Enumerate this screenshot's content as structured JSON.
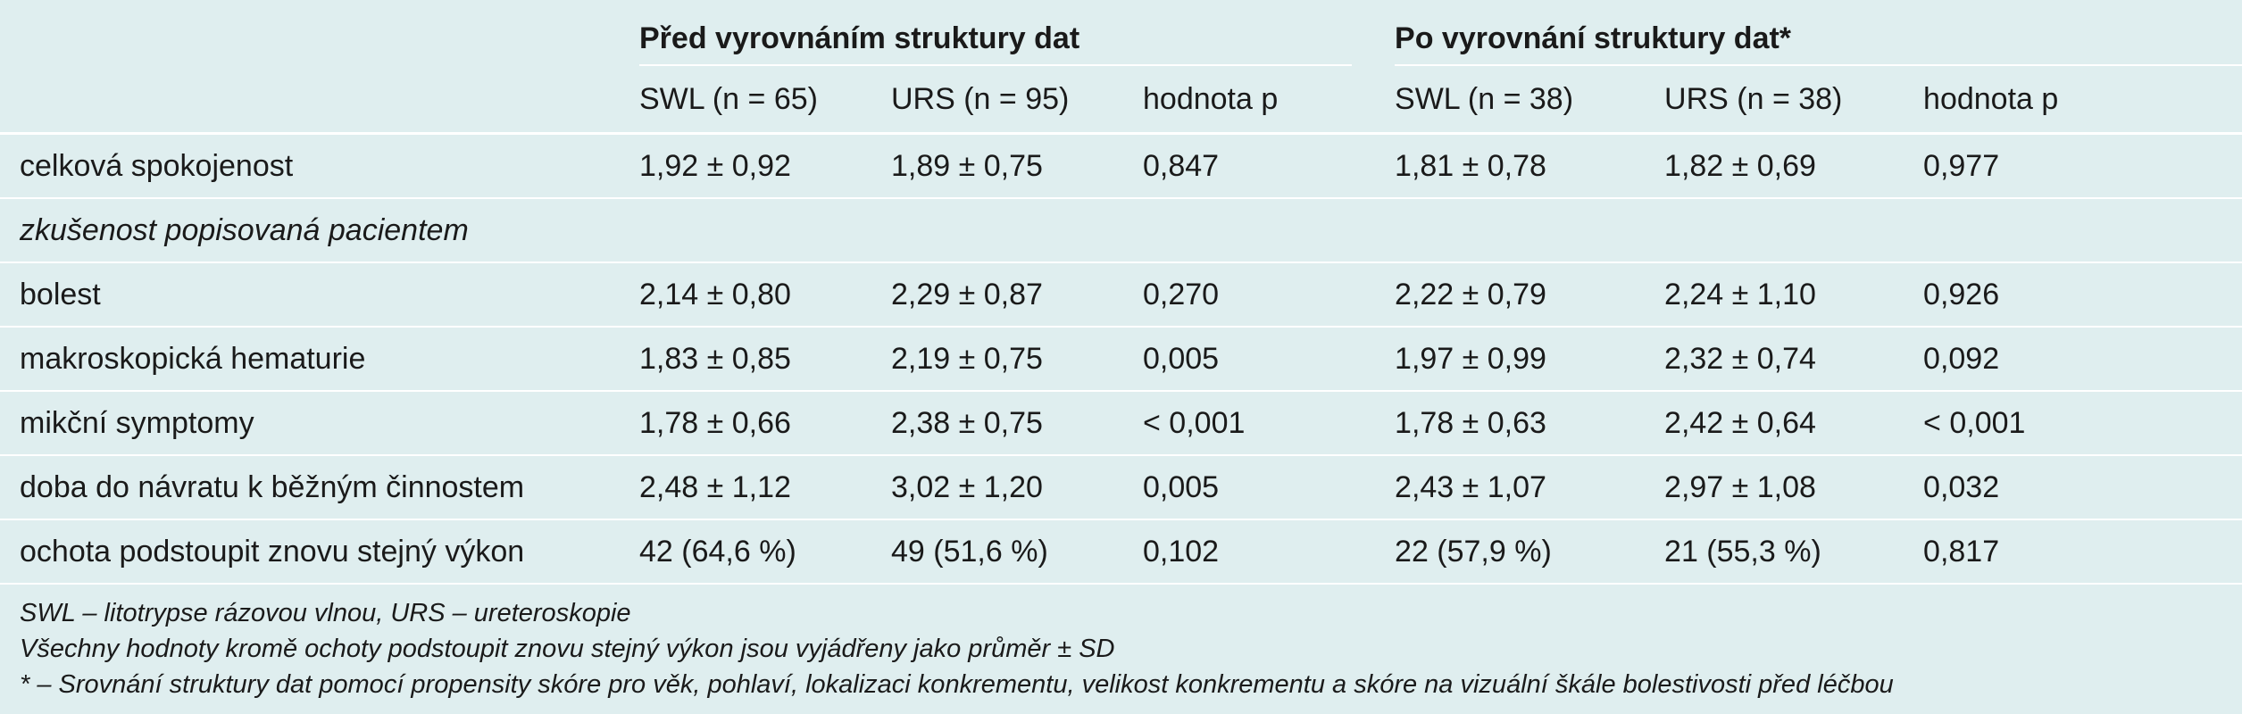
{
  "table": {
    "group_before": "Před vyrovnáním struktury dat",
    "group_after": "Po vyrovnání  struktury dat*",
    "subheaders": [
      "SWL (n = 65)",
      "URS (n = 95)",
      "hodnota p",
      "SWL (n = 38)",
      "URS (n = 38)",
      "hodnota p"
    ],
    "row_overall": {
      "label": "celková spokojenost",
      "values": [
        "1,92 ± 0,92",
        "1,89 ± 0,75",
        "0,847",
        "1,81 ± 0,78",
        "1,82 ± 0,69",
        "0,977"
      ]
    },
    "section_label": "zkušenost popisovaná pacientem",
    "rows": [
      {
        "label": "bolest",
        "values": [
          "2,14 ± 0,80",
          "2,29 ± 0,87",
          "0,270",
          "2,22 ± 0,79",
          "2,24 ± 1,10",
          "0,926"
        ]
      },
      {
        "label": "makroskopická hematurie",
        "values": [
          "1,83 ± 0,85",
          "2,19 ± 0,75",
          "0,005",
          "1,97 ± 0,99",
          "2,32 ± 0,74",
          "0,092"
        ]
      },
      {
        "label": "mikční symptomy",
        "values": [
          "1,78 ± 0,66",
          "2,38 ± 0,75",
          "< 0,001",
          "1,78 ± 0,63",
          "2,42 ± 0,64",
          "< 0,001"
        ]
      },
      {
        "label": "doba do návratu k běžným činnostem",
        "values": [
          "2,48 ± 1,12",
          "3,02 ± 1,20",
          "0,005",
          "2,43 ± 1,07",
          "2,97 ± 1,08",
          "0,032"
        ]
      },
      {
        "label": "ochota podstoupit znovu stejný výkon",
        "values": [
          "42 (64,6 %)",
          "49 (51,6 %)",
          "0,102",
          "22 (57,9 %)",
          "21 (55,3 %)",
          "0,817"
        ]
      }
    ]
  },
  "notes": {
    "abbrev": "SWL – litotrypse rázovou vlnou, URS – ureteroskopie",
    "mean_note": "Všechny hodnoty kromě ochoty podstoupit znovu stejný výkon jsou vyjádřeny jako průměr ± SD",
    "matching_note": "* – Srovnání struktury dat pomocí propensity skóre pro věk, pohlaví, lokalizaci konkrementu, velikost konkrementu a skóre na vizuální škále bolestivosti před léčbou"
  }
}
